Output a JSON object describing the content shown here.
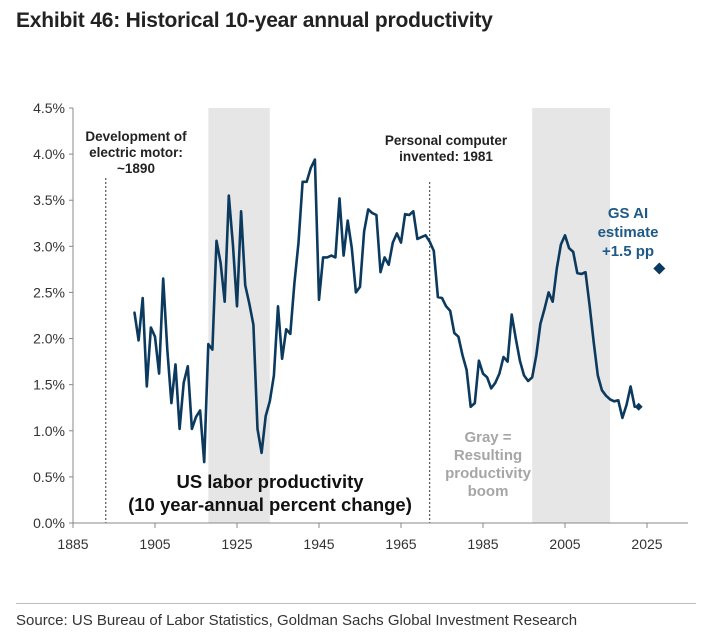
{
  "title": "Exhibit 46: Historical 10-year annual productivity",
  "source": "Source: US Bureau of Labor Statistics, Goldman Sachs Global Investment Research",
  "colors": {
    "line": "#0b3a5e",
    "shade": "#e6e6e6",
    "axis": "#888888",
    "gray_text": "#a6a6a6",
    "ai_text": "#1e5a85"
  },
  "chart_data": {
    "type": "line",
    "xlim": [
      1885,
      2035
    ],
    "ylim": [
      0,
      4.5
    ],
    "x_ticks": [
      1885,
      1905,
      1925,
      1945,
      1965,
      1985,
      2005,
      2025
    ],
    "y_ticks": [
      0,
      0.5,
      1.0,
      1.5,
      2.0,
      2.5,
      3.0,
      3.5,
      4.0,
      4.5
    ],
    "y_tick_labels": [
      "0.0%",
      "0.5%",
      "1.0%",
      "1.5%",
      "2.0%",
      "2.5%",
      "3.0%",
      "3.5%",
      "4.0%",
      "4.5%"
    ],
    "shaded_periods": [
      [
        1918,
        1933
      ],
      [
        1997,
        2016
      ]
    ],
    "vlines": [
      1893,
      1972
    ],
    "series": [
      {
        "x": [
          1900,
          1901,
          1902,
          1903,
          1904,
          1905,
          1906,
          1907,
          1908,
          1909,
          1910,
          1911,
          1912,
          1913,
          1914,
          1915,
          1916,
          1917,
          1918,
          1919,
          1920,
          1921,
          1922,
          1923,
          1924,
          1925,
          1926,
          1927,
          1928,
          1929,
          1930,
          1931,
          1932,
          1933,
          1934,
          1935,
          1936,
          1937,
          1938,
          1939,
          1940,
          1941,
          1942,
          1943,
          1944,
          1945,
          1946,
          1947,
          1948,
          1949,
          1950,
          1951,
          1952,
          1953,
          1954,
          1955,
          1956,
          1957,
          1958,
          1959,
          1960,
          1961,
          1962,
          1963,
          1964,
          1965,
          1966,
          1967,
          1968,
          1969,
          1970,
          1971,
          1972,
          1973,
          1974,
          1975,
          1976,
          1977,
          1978,
          1979,
          1980,
          1981,
          1982,
          1983,
          1984,
          1985,
          1986,
          1987,
          1988,
          1989,
          1990,
          1991,
          1992,
          1993,
          1994,
          1995,
          1996,
          1997,
          1998,
          1999,
          2000,
          2001,
          2002,
          2003,
          2004,
          2005,
          2006,
          2007,
          2008,
          2009,
          2010,
          2011,
          2012,
          2013,
          2014,
          2015,
          2016,
          2017,
          2018,
          2019,
          2020,
          2021,
          2022
        ],
        "values": [
          2.28,
          1.98,
          2.44,
          1.48,
          2.12,
          2.02,
          1.62,
          2.65,
          1.88,
          1.3,
          1.72,
          1.02,
          1.52,
          1.7,
          1.02,
          1.15,
          1.22,
          0.66,
          1.94,
          1.88,
          3.06,
          2.82,
          2.4,
          3.55,
          3.02,
          2.35,
          3.38,
          2.58,
          2.38,
          2.15,
          1.02,
          0.76,
          1.16,
          1.32,
          1.6,
          2.35,
          1.78,
          2.1,
          2.05,
          2.6,
          3.04,
          3.7,
          3.7,
          3.85,
          3.94,
          2.42,
          2.88,
          2.88,
          2.9,
          2.88,
          3.52,
          2.9,
          3.28,
          2.98,
          2.5,
          2.56,
          3.16,
          3.4,
          3.36,
          3.34,
          2.72,
          2.88,
          2.8,
          3.04,
          3.14,
          3.04,
          3.35,
          3.34,
          3.38,
          3.08,
          3.1,
          3.12,
          3.05,
          2.95,
          2.45,
          2.44,
          2.35,
          2.3,
          2.06,
          2.02,
          1.82,
          1.66,
          1.26,
          1.3,
          1.76,
          1.62,
          1.58,
          1.46,
          1.52,
          1.62,
          1.8,
          1.75,
          2.26,
          2.0,
          1.76,
          1.6,
          1.54,
          1.58,
          1.82,
          2.16,
          2.32,
          2.5,
          2.4,
          2.76,
          3.02,
          3.12,
          2.98,
          2.94,
          2.71,
          2.7,
          2.72,
          2.36,
          1.96,
          1.6,
          1.44,
          1.38,
          1.34,
          1.32,
          1.33,
          1.14,
          1.28,
          1.48,
          1.26
        ]
      }
    ],
    "end_marker": {
      "x": 2022,
      "y": 1.26
    },
    "ai_estimate": {
      "x": 2028,
      "y": 2.76
    },
    "annotations": {
      "electric_motor": [
        "Development of",
        "electric motor:",
        "~1890"
      ],
      "personal_computer": [
        "Personal computer",
        "invented: 1981"
      ],
      "gs_ai": [
        "GS AI",
        "estimate",
        "+1.5 pp"
      ],
      "gray_note": [
        "Gray =",
        "Resulting",
        "productivity",
        "boom"
      ],
      "us_labor": [
        "US labor productivity",
        "(10 year-annual percent change)"
      ]
    }
  }
}
